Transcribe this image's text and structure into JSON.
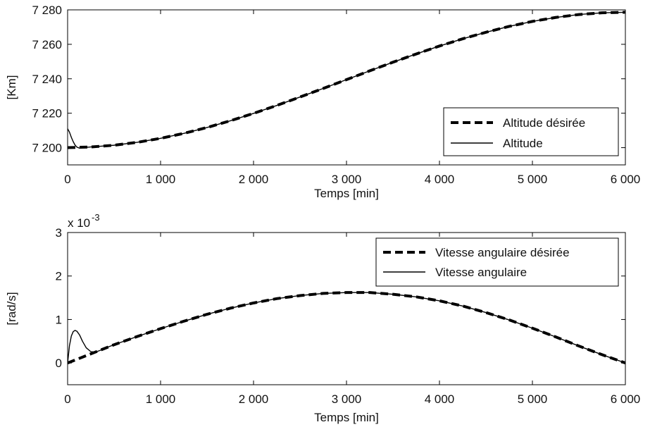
{
  "chart_data": [
    {
      "type": "line",
      "title": "",
      "xlabel": "Temps [min]",
      "ylabel": "[Km]",
      "xlim": [
        0,
        6000
      ],
      "ylim": [
        7190,
        7280
      ],
      "x_ticks": [
        0,
        1000,
        2000,
        3000,
        4000,
        5000,
        6000
      ],
      "x_tick_labels": [
        "0",
        "1 000",
        "2 000",
        "3 000",
        "4 000",
        "5 000",
        "6 000"
      ],
      "y_ticks": [
        7200,
        7220,
        7240,
        7260,
        7280
      ],
      "y_tick_labels": [
        "7 200",
        "7 220",
        "7 240",
        "7 260",
        "7 280"
      ],
      "grid": false,
      "legend_position": "lower-right",
      "series": [
        {
          "name": "Altitude désirée",
          "style": "dashed",
          "x": [
            0,
            250,
            500,
            750,
            1000,
            1250,
            1500,
            1750,
            2000,
            2250,
            2500,
            2750,
            3000,
            3250,
            3500,
            3750,
            4000,
            4250,
            4500,
            4750,
            5000,
            5250,
            5500,
            5750,
            6000
          ],
          "y": [
            7200.0,
            7200.4,
            7201.4,
            7203.1,
            7205.4,
            7208.3,
            7211.7,
            7215.6,
            7219.9,
            7224.5,
            7229.4,
            7234.4,
            7239.5,
            7244.6,
            7249.6,
            7254.4,
            7259.0,
            7263.2,
            7267.0,
            7270.4,
            7273.3,
            7275.6,
            7277.3,
            7278.3,
            7278.6
          ]
        },
        {
          "name": "Altitude",
          "style": "solid",
          "x": [
            0,
            20,
            40,
            60,
            80,
            100,
            130,
            160,
            200,
            250,
            500,
            750,
            1000,
            1250,
            1500,
            1750,
            2000,
            2250,
            2500,
            2750,
            3000,
            3250,
            3500,
            3750,
            4000,
            4250,
            4500,
            4750,
            5000,
            5250,
            5500,
            5750,
            6000
          ],
          "y": [
            7211.0,
            7209.0,
            7206.0,
            7203.5,
            7201.5,
            7200.3,
            7199.7,
            7199.9,
            7200.2,
            7200.4,
            7201.4,
            7203.1,
            7205.4,
            7208.3,
            7211.7,
            7215.6,
            7219.9,
            7224.5,
            7229.4,
            7234.4,
            7239.5,
            7244.6,
            7249.6,
            7254.4,
            7259.0,
            7263.2,
            7267.0,
            7270.4,
            7273.3,
            7275.6,
            7277.3,
            7278.3,
            7278.6
          ]
        }
      ]
    },
    {
      "type": "line",
      "title": "",
      "xlabel": "Temps [min]",
      "ylabel": "[rad/s]",
      "y_multiplier_base": "x 10",
      "y_multiplier_exponent": "-3",
      "xlim": [
        0,
        6000
      ],
      "ylim": [
        -0.5,
        3
      ],
      "x_ticks": [
        0,
        1000,
        2000,
        3000,
        4000,
        5000,
        6000
      ],
      "x_tick_labels": [
        "0",
        "1 000",
        "2 000",
        "3 000",
        "4 000",
        "5 000",
        "6 000"
      ],
      "y_ticks": [
        0,
        1,
        2,
        3
      ],
      "y_tick_labels": [
        "0",
        "1",
        "2",
        "3"
      ],
      "grid": false,
      "legend_position": "upper-right",
      "series": [
        {
          "name": "Vitesse angulaire désirée",
          "style": "dashed",
          "x": [
            0,
            250,
            500,
            750,
            1000,
            1250,
            1500,
            1750,
            2000,
            2250,
            2500,
            2750,
            3000,
            3250,
            3500,
            3750,
            4000,
            4250,
            4500,
            4750,
            5000,
            5250,
            5500,
            5750,
            6000
          ],
          "y": [
            0.0,
            0.21,
            0.42,
            0.61,
            0.79,
            0.96,
            1.12,
            1.26,
            1.38,
            1.48,
            1.55,
            1.6,
            1.62,
            1.62,
            1.58,
            1.52,
            1.43,
            1.31,
            1.16,
            0.99,
            0.8,
            0.6,
            0.39,
            0.19,
            0.0
          ]
        },
        {
          "name": "Vitesse angulaire",
          "style": "solid",
          "x": [
            0,
            20,
            40,
            60,
            80,
            100,
            130,
            160,
            200,
            250,
            300,
            350,
            400,
            500,
            750,
            1000,
            1250,
            1500,
            1750,
            2000,
            2250,
            2500,
            2750,
            3000,
            3250,
            3500,
            3750,
            4000,
            4250,
            4500,
            4750,
            5000,
            5250,
            5500,
            5750,
            6000
          ],
          "y": [
            0.0,
            0.4,
            0.62,
            0.72,
            0.75,
            0.73,
            0.64,
            0.5,
            0.35,
            0.26,
            0.25,
            0.29,
            0.34,
            0.42,
            0.61,
            0.79,
            0.96,
            1.12,
            1.26,
            1.38,
            1.48,
            1.55,
            1.6,
            1.62,
            1.62,
            1.58,
            1.52,
            1.43,
            1.31,
            1.16,
            0.99,
            0.8,
            0.6,
            0.39,
            0.19,
            0.0
          ]
        }
      ]
    }
  ]
}
